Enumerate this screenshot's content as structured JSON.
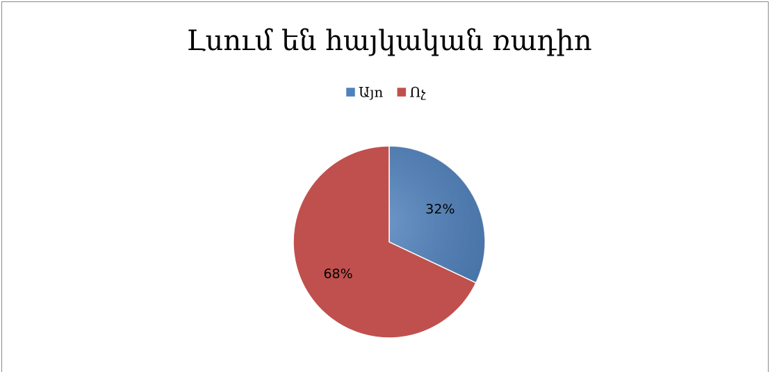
{
  "chart_data": {
    "type": "pie",
    "title": "Լսում են հայկական ռադիո",
    "categories": [
      "Այո",
      "Ոչ"
    ],
    "values": [
      32,
      68
    ],
    "value_labels": [
      "32%",
      "68%"
    ],
    "colors": [
      "#4f81bd",
      "#c0504d"
    ],
    "legend": "top"
  }
}
